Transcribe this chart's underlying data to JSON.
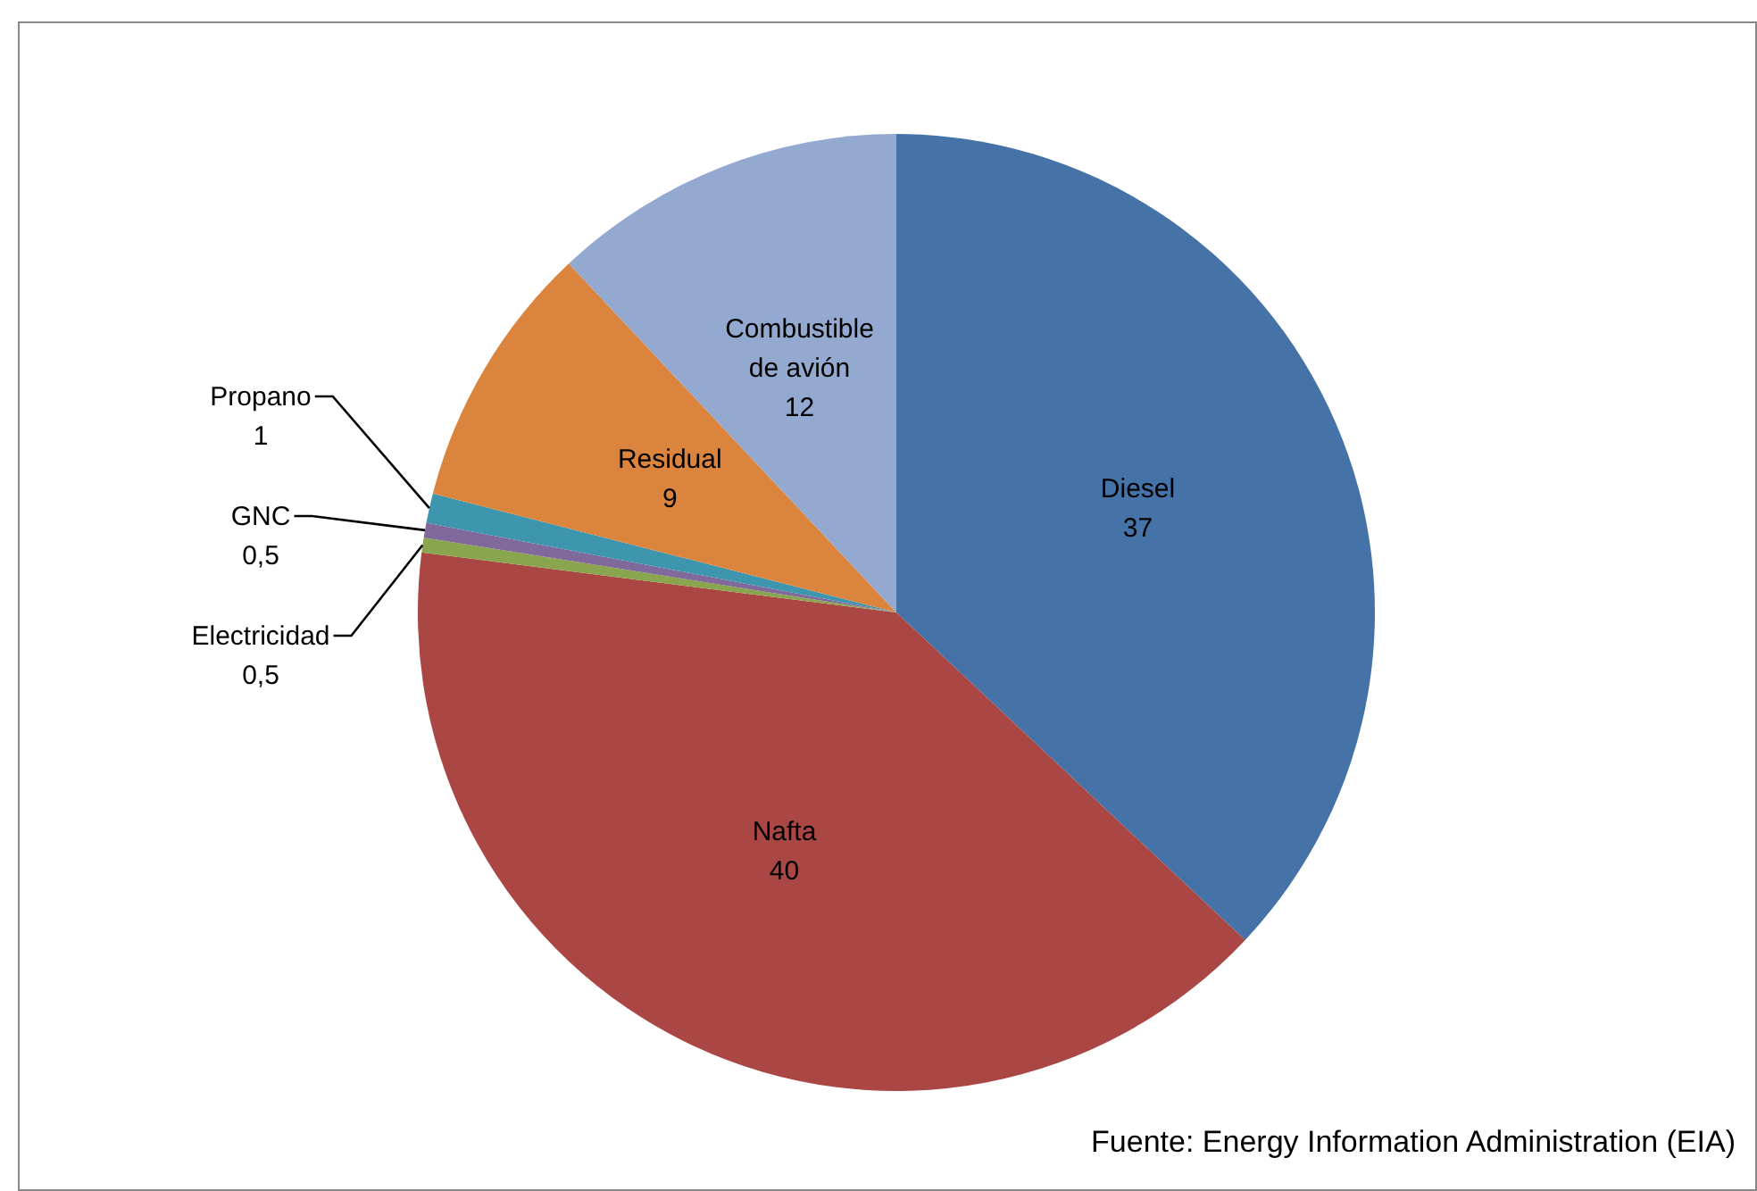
{
  "chart_data": {
    "type": "pie",
    "categories": [
      "Diesel",
      "Nafta",
      "Electricidad",
      "GNC",
      "Propano",
      "Residual",
      "Combustible de avión"
    ],
    "values": [
      37,
      40,
      0.5,
      0.5,
      1,
      9,
      12
    ],
    "colors": [
      "#4572a7",
      "#aa4643",
      "#89a54e",
      "#80699b",
      "#3d96ae",
      "#db843d",
      "#93a9cf"
    ],
    "value_labels": [
      "37",
      "40",
      "0,5",
      "0,5",
      "1",
      "9",
      "12"
    ],
    "annotations": [
      "Fuente: Energy Information Administration (EIA)"
    ]
  }
}
